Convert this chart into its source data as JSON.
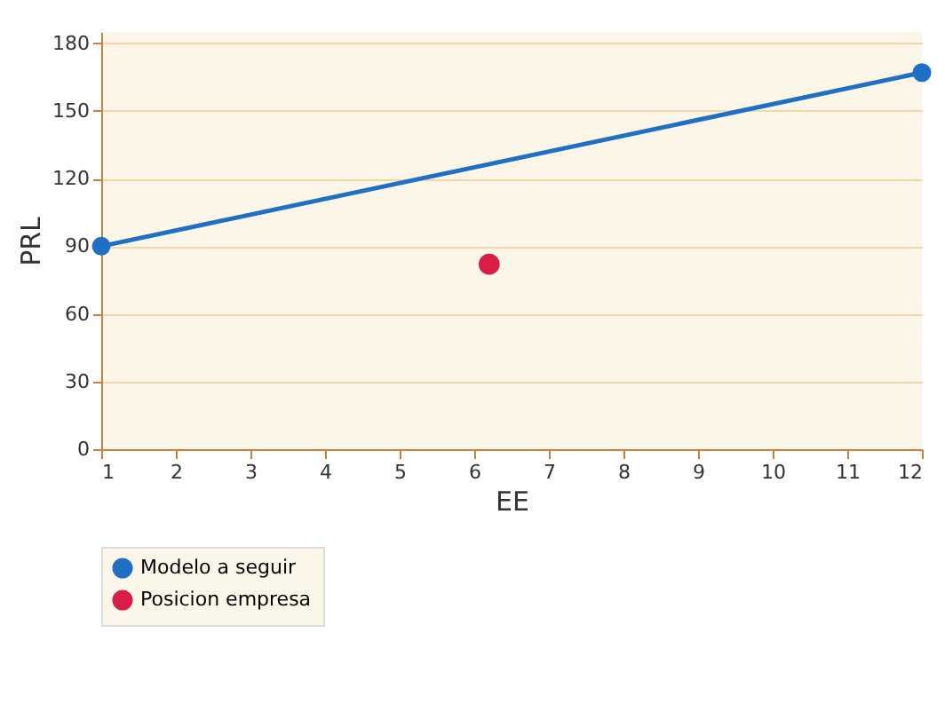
{
  "chart_data": {
    "type": "line",
    "xlabel": "EE",
    "ylabel": "PRL",
    "xlim": [
      1,
      12
    ],
    "xticks": [
      1,
      2,
      3,
      4,
      5,
      6,
      7,
      8,
      9,
      10,
      11,
      12
    ],
    "ylim": [
      0,
      185
    ],
    "yticks": [
      0,
      30,
      60,
      90,
      120,
      150,
      180
    ],
    "grid": "y",
    "legend": "bottom",
    "marker": "circle",
    "series": [
      {
        "name": "Modelo a seguir",
        "color": "#1f6fc4",
        "x": [
          1,
          12
        ],
        "values": [
          90,
          167
        ]
      },
      {
        "name": "Posicion empresa",
        "color": "#d81e45",
        "type": "scatter",
        "x": [
          6.2
        ],
        "values": [
          82
        ]
      }
    ]
  }
}
